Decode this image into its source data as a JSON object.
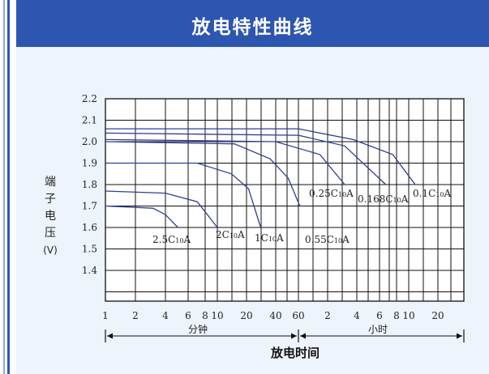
{
  "header": {
    "title": "放电特性曲线"
  },
  "chart_data": {
    "type": "line",
    "title": "",
    "ylabel": "端子电压(V)",
    "ylabel_chars": [
      "端",
      "子",
      "电",
      "压"
    ],
    "ylabel_unit": "(V)",
    "xlabel": "放电时间",
    "x_group_minutes": "分钟",
    "x_group_hours": "小时",
    "ylim": [
      1.0,
      2.2
    ],
    "y_ticks": [
      "2.2",
      "2.1",
      "2.0",
      "1.9",
      "1.8",
      "1.7",
      "1.6",
      "1.5",
      "1.4"
    ],
    "x_ticks": [
      "1",
      "2",
      "4",
      "6",
      "8",
      "10",
      "20",
      "40",
      "60",
      "2",
      "4",
      "6",
      "8",
      "10",
      "20"
    ],
    "x_scale": "log",
    "x_tick_minutes": [
      1,
      2,
      4,
      6,
      8,
      10,
      20,
      40,
      60,
      120,
      240,
      360,
      480,
      600,
      1200
    ],
    "grid": true,
    "series": [
      {
        "name": "2.5C₁₀A",
        "label_main": "2.5C",
        "label_sub": "10",
        "label_tail": "A",
        "points": [
          [
            1,
            1.7
          ],
          [
            3,
            1.69
          ],
          [
            4,
            1.66
          ],
          [
            5,
            1.6
          ]
        ]
      },
      {
        "name": "2C₁₀A",
        "label_main": "2C",
        "label_sub": "10",
        "label_tail": "A",
        "points": [
          [
            1,
            1.77
          ],
          [
            4,
            1.76
          ],
          [
            7,
            1.72
          ],
          [
            10,
            1.6
          ]
        ]
      },
      {
        "name": "1C₁₀A",
        "label_main": "1C",
        "label_sub": "10",
        "label_tail": "A",
        "points": [
          [
            1,
            1.9
          ],
          [
            7,
            1.9
          ],
          [
            14,
            1.85
          ],
          [
            21,
            1.78
          ],
          [
            28,
            1.6
          ]
        ]
      },
      {
        "name": "0.55C₁₀A",
        "label_main": "0.55C",
        "label_sub": "10",
        "label_tail": "A",
        "points": [
          [
            1,
            2.0
          ],
          [
            15,
            1.99
          ],
          [
            35,
            1.92
          ],
          [
            50,
            1.83
          ],
          [
            62,
            1.7
          ]
        ]
      },
      {
        "name": "0.25C₁₀A",
        "label_main": "0.25C",
        "label_sub": "10",
        "label_tail": "A",
        "points": [
          [
            1,
            2.01
          ],
          [
            40,
            2.0
          ],
          [
            100,
            1.94
          ],
          [
            180,
            1.8
          ]
        ]
      },
      {
        "name": "0.168C₁₀A",
        "label_main": "0.168C",
        "label_sub": "10",
        "label_tail": "A",
        "points": [
          [
            1,
            2.04
          ],
          [
            60,
            2.03
          ],
          [
            180,
            1.98
          ],
          [
            400,
            1.8
          ]
        ]
      },
      {
        "name": "0.1C₁₀A",
        "label_main": "0.1C",
        "label_sub": "10",
        "label_tail": "A",
        "points": [
          [
            1,
            2.06
          ],
          [
            60,
            2.06
          ],
          [
            220,
            2.01
          ],
          [
            450,
            1.94
          ],
          [
            700,
            1.8
          ]
        ]
      }
    ],
    "colors": {
      "line": "#2d3f94",
      "grid": "#111111",
      "panel": "#eef4fb",
      "header": "#2d56b0"
    }
  }
}
